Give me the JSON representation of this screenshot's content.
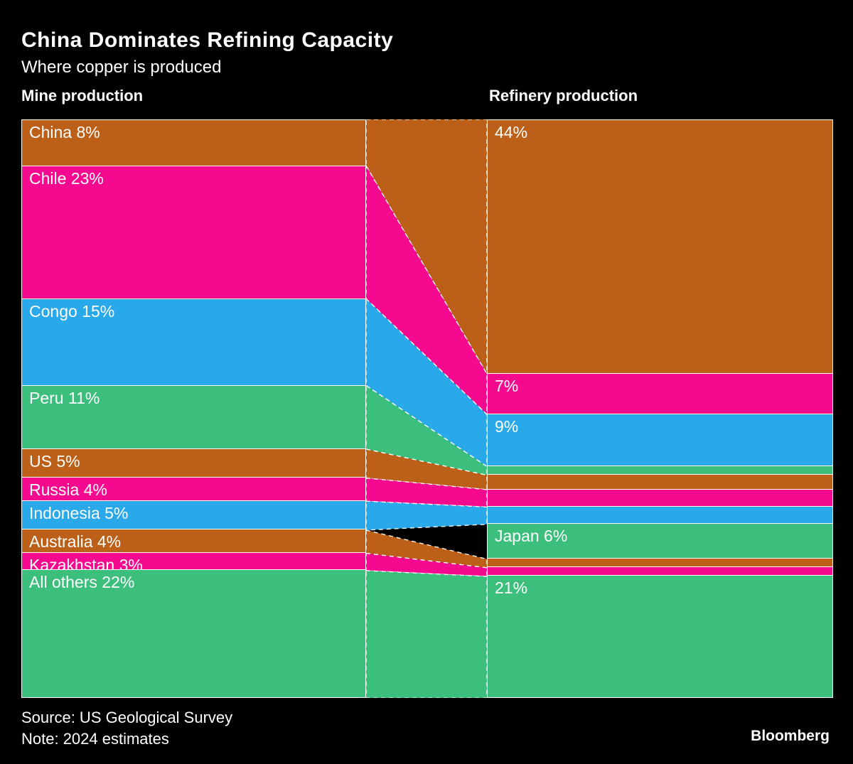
{
  "header": {
    "title": "China Dominates Refining Capacity",
    "subtitle": "Where copper is produced"
  },
  "columns": {
    "left_header": "Mine production",
    "right_header": "Refinery production"
  },
  "footer": {
    "source": "Source: US Geological Survey",
    "note": "Note: 2024 estimates",
    "brand": "Bloomberg"
  },
  "colors": {
    "background": "#000000",
    "text": "#FFFFFF",
    "orange": "#BC6019",
    "pink": "#F50A8F",
    "blue": "#29A8EA",
    "green": "#3CBE7C"
  },
  "chart_data": {
    "type": "sankey",
    "unit": "%",
    "title": "China Dominates Refining Capacity",
    "subtitle": "Where copper is produced",
    "left_axis_label": "Mine production",
    "right_axis_label": "Refinery production",
    "mine_production": [
      {
        "name": "China",
        "value": 8,
        "label": "China 8%",
        "color": "orange"
      },
      {
        "name": "Chile",
        "value": 23,
        "label": "Chile 23%",
        "color": "pink"
      },
      {
        "name": "Congo",
        "value": 15,
        "label": "Congo 15%",
        "color": "blue"
      },
      {
        "name": "Peru",
        "value": 11,
        "label": "Peru 11%",
        "color": "green"
      },
      {
        "name": "US",
        "value": 5,
        "label": "US 5%",
        "color": "orange"
      },
      {
        "name": "Russia",
        "value": 4,
        "label": "Russia 4%",
        "color": "pink"
      },
      {
        "name": "Indonesia",
        "value": 5,
        "label": "Indonesia 5%",
        "color": "blue"
      },
      {
        "name": "Australia",
        "value": 4,
        "label": "Australia 4%",
        "color": "orange"
      },
      {
        "name": "Kazakhstan",
        "value": 3,
        "label": "Kazakhstan 3%",
        "color": "pink"
      },
      {
        "name": "All others",
        "value": 22,
        "label": "All others 22%",
        "color": "green"
      }
    ],
    "refinery_production": [
      {
        "name": "China",
        "value": 44,
        "label": "44%",
        "color": "orange"
      },
      {
        "name": "Chile",
        "value": 7,
        "label": "7%",
        "color": "pink"
      },
      {
        "name": "Congo",
        "value": 9,
        "label": "9%",
        "color": "blue"
      },
      {
        "name": "Peru",
        "value": 1.5,
        "label": "",
        "color": "green"
      },
      {
        "name": "US",
        "value": 2.5,
        "label": "",
        "color": "orange"
      },
      {
        "name": "Russia",
        "value": 3,
        "label": "",
        "color": "pink"
      },
      {
        "name": "Indonesia",
        "value": 3,
        "label": "",
        "color": "blue"
      },
      {
        "name": "Japan",
        "value": 6,
        "label": "Japan 6%",
        "color": "green"
      },
      {
        "name": "Australia",
        "value": 1.5,
        "label": "",
        "color": "orange"
      },
      {
        "name": "Kazakhstan",
        "value": 1.5,
        "label": "",
        "color": "pink"
      },
      {
        "name": "All others",
        "value": 21,
        "label": "21%",
        "color": "green"
      }
    ]
  }
}
